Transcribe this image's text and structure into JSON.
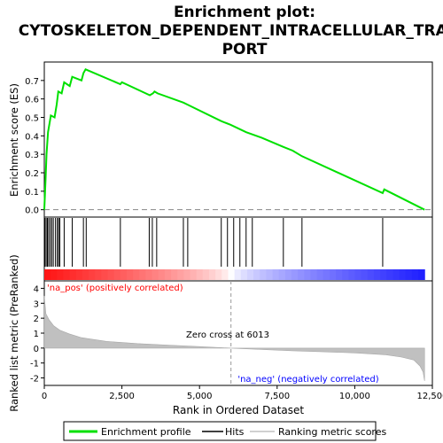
{
  "chart_data": {
    "type": "line",
    "title": "Enrichment plot: CYTOSKELETON_DEPENDENT_INTRACELLULAR_TRANSPORT",
    "title_lines": [
      "Enrichment plot:",
      "CYTOSKELETON_DEPENDENT_INTRACELLULAR_TRANS",
      "PORT"
    ],
    "xlabel": "Rank in Ordered Dataset",
    "es_panel": {
      "ylabel": "Enrichment score (ES)",
      "ylim": [
        -0.04,
        0.8
      ],
      "yticks": [
        0.0,
        0.1,
        0.2,
        0.3,
        0.4,
        0.5,
        0.6,
        0.7
      ],
      "ytick_labels": [
        "0.0",
        "0.1",
        "0.2",
        "0.3",
        "0.4",
        "0.5",
        "0.6",
        "0.7"
      ],
      "color": "#00e000",
      "points": [
        [
          0,
          0.0
        ],
        [
          40,
          0.16
        ],
        [
          70,
          0.3
        ],
        [
          120,
          0.42
        ],
        [
          210,
          0.51
        ],
        [
          330,
          0.5
        ],
        [
          400,
          0.57
        ],
        [
          450,
          0.64
        ],
        [
          560,
          0.63
        ],
        [
          640,
          0.69
        ],
        [
          820,
          0.67
        ],
        [
          900,
          0.72
        ],
        [
          1200,
          0.7
        ],
        [
          1260,
          0.74
        ],
        [
          1330,
          0.76
        ],
        [
          2450,
          0.68
        ],
        [
          2500,
          0.69
        ],
        [
          3400,
          0.62
        ],
        [
          3500,
          0.63
        ],
        [
          3550,
          0.64
        ],
        [
          3650,
          0.63
        ],
        [
          4480,
          0.58
        ],
        [
          4600,
          0.57
        ],
        [
          5700,
          0.48
        ],
        [
          6000,
          0.46
        ],
        [
          6500,
          0.42
        ],
        [
          7000,
          0.39
        ],
        [
          7700,
          0.34
        ],
        [
          8000,
          0.32
        ],
        [
          8300,
          0.29
        ],
        [
          10900,
          0.09
        ],
        [
          10950,
          0.11
        ],
        [
          12250,
          0.0
        ]
      ]
    },
    "hits": [
      20,
      60,
      100,
      140,
      190,
      240,
      290,
      360,
      420,
      460,
      500,
      640,
      900,
      1260,
      1350,
      2450,
      3380,
      3480,
      3620,
      4480,
      4620,
      5700,
      5900,
      6100,
      6300,
      6500,
      6700,
      7700,
      8300,
      10900
    ],
    "rank_panel": {
      "ylabel": "Ranked list metric (PreRanked)",
      "ylim": [
        -2.5,
        4.5
      ],
      "yticks": [
        -2,
        -1,
        0,
        1,
        2,
        3,
        4
      ],
      "ytick_labels": [
        "-2",
        "-1",
        "0",
        "1",
        "2",
        "3",
        "4"
      ],
      "zero_cross": 6013,
      "zero_cross_label": "Zero cross at 6013",
      "pos_label": "'na_pos' (positively correlated)",
      "neg_label": "'na_neg' (negatively correlated)",
      "profile": [
        [
          0,
          3.5
        ],
        [
          50,
          2.3
        ],
        [
          150,
          1.9
        ],
        [
          300,
          1.5
        ],
        [
          500,
          1.2
        ],
        [
          800,
          0.95
        ],
        [
          1200,
          0.7
        ],
        [
          2000,
          0.45
        ],
        [
          3000,
          0.3
        ],
        [
          4000,
          0.2
        ],
        [
          5000,
          0.1
        ],
        [
          6013,
          0.0
        ],
        [
          7000,
          -0.1
        ],
        [
          8000,
          -0.18
        ],
        [
          9000,
          -0.25
        ],
        [
          10000,
          -0.32
        ],
        [
          11000,
          -0.45
        ],
        [
          11500,
          -0.6
        ],
        [
          11900,
          -0.8
        ],
        [
          12100,
          -1.2
        ],
        [
          12200,
          -1.6
        ],
        [
          12250,
          -2.2
        ]
      ]
    },
    "xlim": [
      0,
      12500
    ],
    "xticks": [
      0,
      2500,
      5000,
      7500,
      10000,
      12500
    ],
    "xtick_labels": [
      "0",
      "2,500",
      "5,000",
      "7,500",
      "10,000",
      "12,500"
    ],
    "n_total": 12250,
    "legend": {
      "position": "bottom",
      "entries": [
        {
          "label": "Enrichment profile",
          "color": "#00e000"
        },
        {
          "label": "Hits",
          "color": "#000000"
        },
        {
          "label": "Ranking metric scores",
          "color": "#c0c0c0"
        }
      ]
    }
  }
}
